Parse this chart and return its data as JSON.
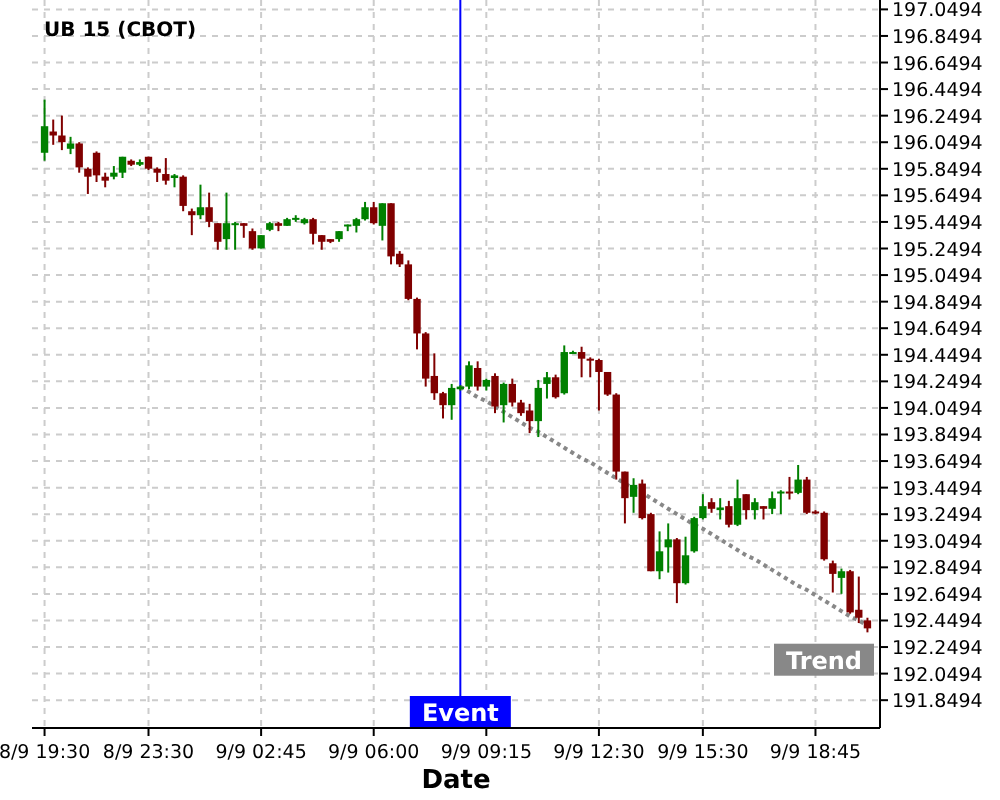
{
  "chart_data": {
    "type": "candlestick",
    "title": "UB 15 (CBOT)",
    "xlabel": "Date",
    "annotations": [
      "Event"
    ],
    "categories": [
      "8/9 19:30",
      null,
      null,
      null,
      null,
      null,
      null,
      null,
      null,
      null,
      null,
      null,
      "8/9 23:30",
      null,
      null,
      null,
      null,
      null,
      null,
      null,
      null,
      null,
      null,
      null,
      null,
      "9/9 02:45",
      null,
      null,
      null,
      null,
      null,
      null,
      null,
      null,
      null,
      null,
      null,
      null,
      "9/9 06:00",
      null,
      null,
      null,
      null,
      null,
      null,
      null,
      null,
      null,
      null,
      null,
      null,
      "9/9 09:15",
      null,
      null,
      null,
      null,
      null,
      null,
      null,
      null,
      null,
      null,
      null,
      null,
      "9/9 12:30",
      null,
      null,
      null,
      null,
      null,
      null,
      null,
      null,
      null,
      null,
      null,
      "9/9 15:30",
      null,
      null,
      null,
      null,
      null,
      null,
      null,
      null,
      null,
      null,
      null,
      null,
      "9/9 18:45",
      null,
      null,
      null,
      null,
      null,
      null
    ],
    "ohlc": [
      [
        195.97,
        196.37,
        195.91,
        196.17
      ],
      [
        196.13,
        196.22,
        196.03,
        196.1
      ],
      [
        196.1,
        196.25,
        195.99,
        196.05
      ],
      [
        196.0,
        196.09,
        195.96,
        196.04
      ],
      [
        196.04,
        196.05,
        195.82,
        195.86
      ],
      [
        195.85,
        195.86,
        195.66,
        195.79
      ],
      [
        195.97,
        195.98,
        195.75,
        195.8
      ],
      [
        195.79,
        195.82,
        195.71,
        195.76
      ],
      [
        195.79,
        195.87,
        195.77,
        195.82
      ],
      [
        195.82,
        195.94,
        195.78,
        195.94
      ],
      [
        195.91,
        195.92,
        195.87,
        195.88
      ],
      [
        195.88,
        195.92,
        195.87,
        195.9
      ],
      [
        195.94,
        195.94,
        195.84,
        195.85
      ],
      [
        195.85,
        195.86,
        195.75,
        195.82
      ],
      [
        195.81,
        195.93,
        195.73,
        195.76
      ],
      [
        195.78,
        195.81,
        195.71,
        195.8
      ],
      [
        195.79,
        195.8,
        195.53,
        195.57
      ],
      [
        195.53,
        195.55,
        195.35,
        195.5
      ],
      [
        195.5,
        195.73,
        195.47,
        195.56
      ],
      [
        195.56,
        195.67,
        195.41,
        195.45
      ],
      [
        195.44,
        195.44,
        195.24,
        195.3
      ],
      [
        195.32,
        195.67,
        195.24,
        195.44
      ],
      [
        195.43,
        195.45,
        195.24,
        195.44
      ],
      [
        195.44,
        195.44,
        195.33,
        195.42
      ],
      [
        195.38,
        195.4,
        195.24,
        195.25
      ],
      [
        195.25,
        195.35,
        195.25,
        195.35
      ],
      [
        195.39,
        195.45,
        195.38,
        195.44
      ],
      [
        195.44,
        195.45,
        195.38,
        195.42
      ],
      [
        195.42,
        195.48,
        195.42,
        195.47
      ],
      [
        195.47,
        195.5,
        195.45,
        195.48
      ],
      [
        195.44,
        195.48,
        195.43,
        195.47
      ],
      [
        195.47,
        195.48,
        195.28,
        195.36
      ],
      [
        195.35,
        195.35,
        195.24,
        195.3
      ],
      [
        195.32,
        195.32,
        195.29,
        195.3
      ],
      [
        195.32,
        195.38,
        195.3,
        195.38
      ],
      [
        195.42,
        195.43,
        195.38,
        195.43
      ],
      [
        195.42,
        195.48,
        195.37,
        195.47
      ],
      [
        195.47,
        195.6,
        195.46,
        195.56
      ],
      [
        195.56,
        195.6,
        195.43,
        195.44
      ],
      [
        195.42,
        195.59,
        195.31,
        195.59
      ],
      [
        195.59,
        195.59,
        195.13,
        195.19
      ],
      [
        195.21,
        195.23,
        195.11,
        195.13
      ],
      [
        195.13,
        195.16,
        194.86,
        194.87
      ],
      [
        194.87,
        194.88,
        194.49,
        194.61
      ],
      [
        194.61,
        194.62,
        194.21,
        194.27
      ],
      [
        194.29,
        194.46,
        194.11,
        194.16
      ],
      [
        194.16,
        194.17,
        193.97,
        194.07
      ],
      [
        194.07,
        194.23,
        193.96,
        194.2
      ],
      [
        194.19,
        194.22,
        194.18,
        194.21
      ],
      [
        194.21,
        194.4,
        194.19,
        194.37
      ],
      [
        194.35,
        194.4,
        194.18,
        194.21
      ],
      [
        194.21,
        194.27,
        194.18,
        194.26
      ],
      [
        194.29,
        194.31,
        194.01,
        194.06
      ],
      [
        194.07,
        194.24,
        193.94,
        194.23
      ],
      [
        194.23,
        194.27,
        194.06,
        194.09
      ],
      [
        194.09,
        194.11,
        193.99,
        194.01
      ],
      [
        194.03,
        194.08,
        193.86,
        193.95
      ],
      [
        193.95,
        194.26,
        193.83,
        194.2
      ],
      [
        194.23,
        194.32,
        194.12,
        194.28
      ],
      [
        194.28,
        194.3,
        194.12,
        194.13
      ],
      [
        194.16,
        194.52,
        194.15,
        194.47
      ],
      [
        194.46,
        194.48,
        194.46,
        194.47
      ],
      [
        194.47,
        194.51,
        194.28,
        194.42
      ],
      [
        194.42,
        194.43,
        194.28,
        194.41
      ],
      [
        194.41,
        194.42,
        194.03,
        194.32
      ],
      [
        194.32,
        194.32,
        194.14,
        194.15
      ],
      [
        194.15,
        194.16,
        193.51,
        193.57
      ],
      [
        193.57,
        193.57,
        193.18,
        193.37
      ],
      [
        193.38,
        193.52,
        193.26,
        193.47
      ],
      [
        193.48,
        193.51,
        193.21,
        193.22
      ],
      [
        193.25,
        193.26,
        192.82,
        192.82
      ],
      [
        192.82,
        193.12,
        192.76,
        192.97
      ],
      [
        193.0,
        193.18,
        192.81,
        193.06
      ],
      [
        193.06,
        193.07,
        192.58,
        192.73
      ],
      [
        192.73,
        193.08,
        192.72,
        192.94
      ],
      [
        192.97,
        193.23,
        192.96,
        193.22
      ],
      [
        193.22,
        193.4,
        193.21,
        193.31
      ],
      [
        193.34,
        193.37,
        193.26,
        193.29
      ],
      [
        193.28,
        193.37,
        193.21,
        193.3
      ],
      [
        193.31,
        193.35,
        193.15,
        193.17
      ],
      [
        193.17,
        193.51,
        193.16,
        193.37
      ],
      [
        193.4,
        193.4,
        193.21,
        193.28
      ],
      [
        193.28,
        193.37,
        193.21,
        193.34
      ],
      [
        193.31,
        193.31,
        193.21,
        193.29
      ],
      [
        193.29,
        193.42,
        193.25,
        193.37
      ],
      [
        193.41,
        193.43,
        193.25,
        193.42
      ],
      [
        193.42,
        193.53,
        193.36,
        193.41
      ],
      [
        193.41,
        193.62,
        193.4,
        193.51
      ],
      [
        193.51,
        193.53,
        193.25,
        193.26
      ],
      [
        193.27,
        193.28,
        193.25,
        193.26
      ],
      [
        193.26,
        193.27,
        192.9,
        192.91
      ],
      [
        192.88,
        192.9,
        192.66,
        192.8
      ],
      [
        192.77,
        192.84,
        192.65,
        192.82
      ],
      [
        192.82,
        192.83,
        192.5,
        192.51
      ],
      [
        192.53,
        192.78,
        192.43,
        192.47
      ],
      [
        192.45,
        192.47,
        192.36,
        192.39
      ]
    ],
    "colors": [
      "#008000",
      "#800000",
      "#800000",
      "#008000",
      "#800000",
      "#800000",
      "#800000",
      "#800000",
      "#008000",
      "#008000",
      "#800000",
      "#008000",
      "#800000",
      "#800000",
      "#800000",
      "#008000",
      "#800000",
      "#800000",
      "#008000",
      "#800000",
      "#800000",
      "#008000",
      "#008000",
      "#800000",
      "#800000",
      "#008000",
      "#008000",
      "#800000",
      "#008000",
      "#008000",
      "#008000",
      "#800000",
      "#800000",
      "#800000",
      "#008000",
      "#008000",
      "#008000",
      "#008000",
      "#800000",
      "#008000",
      "#800000",
      "#800000",
      "#800000",
      "#800000",
      "#800000",
      "#800000",
      "#800000",
      "#008000",
      "#008000",
      "#008000",
      "#800000",
      "#008000",
      "#800000",
      "#008000",
      "#800000",
      "#800000",
      "#800000",
      "#008000",
      "#008000",
      "#800000",
      "#008000",
      "#008000",
      "#800000",
      "#800000",
      "#800000",
      "#800000",
      "#800000",
      "#800000",
      "#008000",
      "#800000",
      "#800000",
      "#008000",
      "#008000",
      "#800000",
      "#008000",
      "#008000",
      "#008000",
      "#800000",
      "#008000",
      "#800000",
      "#008000",
      "#800000",
      "#008000",
      "#800000",
      "#008000",
      "#008000",
      "#800000",
      "#008000",
      "#800000",
      "#800000",
      "#800000",
      "#800000",
      "#008000",
      "#800000",
      "#800000",
      "#800000"
    ],
    "series": [
      {
        "type": "line",
        "name": "Trend",
        "color": "#888888",
        "line_style": "dotted",
        "values": [
          null,
          null,
          null,
          null,
          null,
          null,
          null,
          null,
          null,
          null,
          null,
          null,
          null,
          null,
          null,
          null,
          null,
          null,
          null,
          null,
          null,
          null,
          null,
          null,
          null,
          null,
          null,
          null,
          null,
          null,
          null,
          null,
          null,
          null,
          null,
          null,
          null,
          null,
          null,
          null,
          null,
          null,
          null,
          null,
          null,
          null,
          null,
          null,
          194.21,
          194.17,
          194.13,
          194.1,
          194.06,
          194.02,
          193.98,
          193.94,
          193.9,
          193.87,
          193.83,
          193.79,
          193.75,
          193.71,
          193.67,
          193.64,
          193.6,
          193.56,
          193.52,
          193.48,
          193.44,
          193.41,
          193.37,
          193.33,
          193.29,
          193.25,
          193.21,
          193.17,
          193.14,
          193.1,
          193.06,
          193.02,
          192.98,
          192.94,
          192.91,
          192.87,
          192.83,
          192.79,
          192.75,
          192.71,
          192.68,
          192.64,
          192.6,
          192.56,
          192.52,
          192.48,
          192.45,
          192.41
        ]
      }
    ],
    "ylim": [
      191.64,
      197.12
    ],
    "yticks": [
      197.0494,
      196.8494,
      196.6494,
      196.4494,
      196.2494,
      196.0494,
      195.8494,
      195.6494,
      195.4494,
      195.2494,
      195.0494,
      194.8494,
      194.6494,
      194.4494,
      194.2494,
      194.0494,
      193.8494,
      193.6494,
      193.4494,
      193.2494,
      193.0494,
      192.8494,
      192.6494,
      192.4494,
      192.2494,
      192.0494,
      191.8494
    ],
    "grid": true
  }
}
